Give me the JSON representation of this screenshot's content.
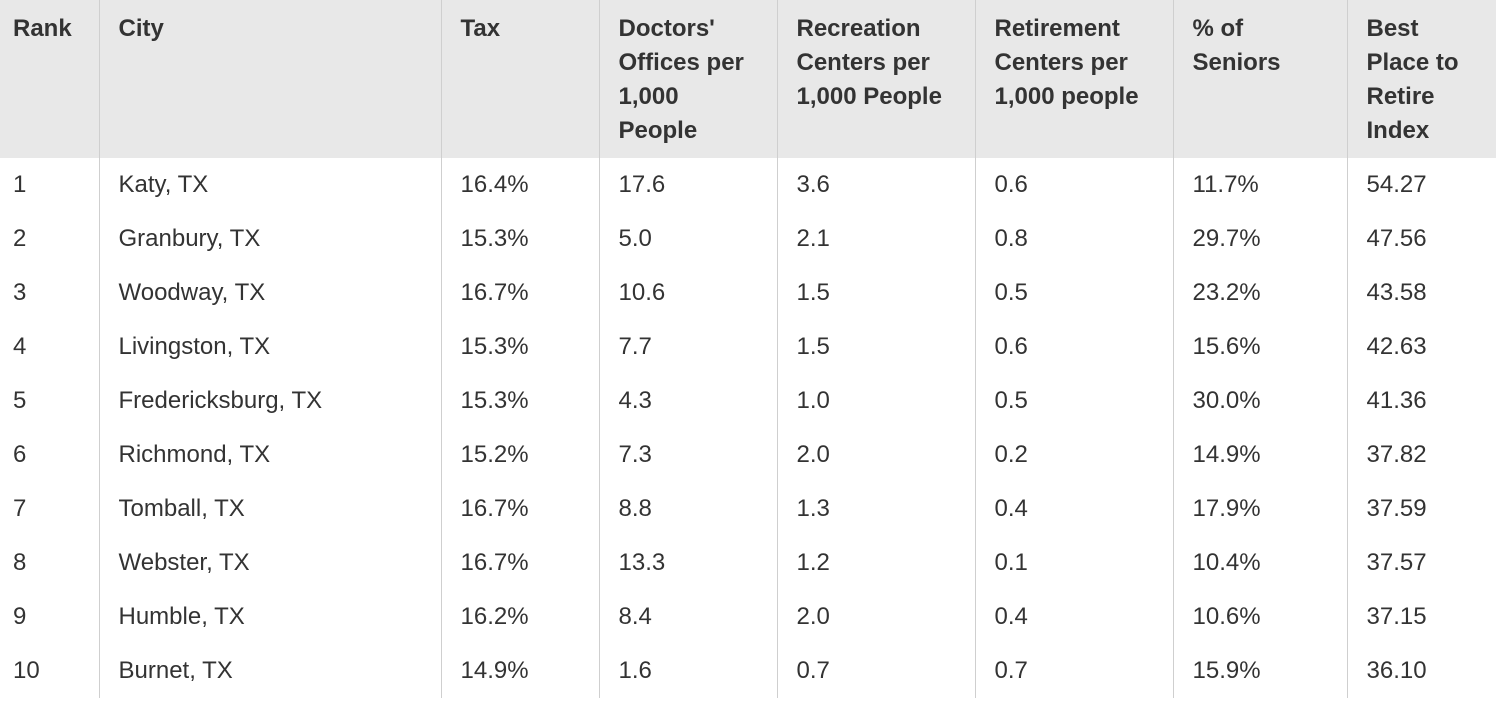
{
  "table": {
    "headers": [
      "Rank",
      "City",
      "Tax",
      "Doctors' Offices per 1,000 People",
      "Recreation Centers per 1,000 People",
      "Retirement Centers per 1,000 people",
      "% of Seniors",
      "Best Place to Retire Index"
    ],
    "rows": [
      [
        "1",
        "Katy, TX",
        "16.4%",
        "17.6",
        "3.6",
        "0.6",
        "11.7%",
        "54.27"
      ],
      [
        "2",
        "Granbury, TX",
        "15.3%",
        "5.0",
        "2.1",
        "0.8",
        "29.7%",
        "47.56"
      ],
      [
        "3",
        "Woodway, TX",
        "16.7%",
        "10.6",
        "1.5",
        "0.5",
        "23.2%",
        "43.58"
      ],
      [
        "4",
        "Livingston, TX",
        "15.3%",
        "7.7",
        "1.5",
        "0.6",
        "15.6%",
        "42.63"
      ],
      [
        "5",
        "Fredericksburg, TX",
        "15.3%",
        "4.3",
        "1.0",
        "0.5",
        "30.0%",
        "41.36"
      ],
      [
        "6",
        "Richmond, TX",
        "15.2%",
        "7.3",
        "2.0",
        "0.2",
        "14.9%",
        "37.82"
      ],
      [
        "7",
        "Tomball, TX",
        "16.7%",
        "8.8",
        "1.3",
        "0.4",
        "17.9%",
        "37.59"
      ],
      [
        "8",
        "Webster, TX",
        "16.7%",
        "13.3",
        "1.2",
        "0.1",
        "10.4%",
        "37.57"
      ],
      [
        "9",
        "Humble, TX",
        "16.2%",
        "8.4",
        "2.0",
        "0.4",
        "10.6%",
        "37.15"
      ],
      [
        "10",
        "Burnet, TX",
        "14.9%",
        "1.6",
        "0.7",
        "0.7",
        "15.9%",
        "36.10"
      ]
    ]
  }
}
